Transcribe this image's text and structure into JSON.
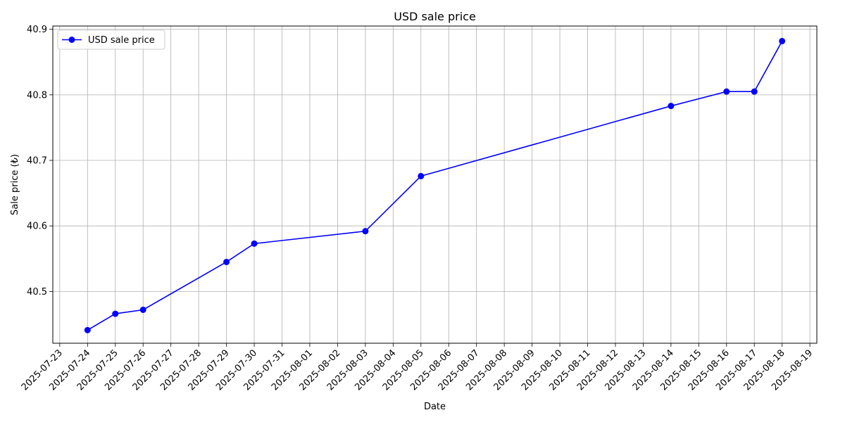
{
  "chart_data": {
    "type": "line",
    "title": "USD sale price",
    "xlabel": "Date",
    "ylabel": "Sale price (₺)",
    "x_ticks": [
      "2025-07-23",
      "2025-07-24",
      "2025-07-25",
      "2025-07-26",
      "2025-07-27",
      "2025-07-28",
      "2025-07-29",
      "2025-07-30",
      "2025-07-31",
      "2025-08-01",
      "2025-08-02",
      "2025-08-03",
      "2025-08-04",
      "2025-08-05",
      "2025-08-06",
      "2025-08-07",
      "2025-08-08",
      "2025-08-09",
      "2025-08-10",
      "2025-08-11",
      "2025-08-12",
      "2025-08-13",
      "2025-08-14",
      "2025-08-15",
      "2025-08-16",
      "2025-08-17",
      "2025-08-18",
      "2025-08-19"
    ],
    "y_ticks": [
      "40.5",
      "40.6",
      "40.7",
      "40.8",
      "40.9"
    ],
    "xlim": [
      "2025-07-22T18:00",
      "2025-08-19T06:00"
    ],
    "ylim": [
      40.421,
      40.905
    ],
    "grid": true,
    "legend_position": "top-left",
    "colors": {
      "series": "#0000ff"
    },
    "series": [
      {
        "name": "USD sale price",
        "x": [
          "2025-07-24",
          "2025-07-25",
          "2025-07-26",
          "2025-07-29",
          "2025-07-30",
          "2025-08-03",
          "2025-08-05",
          "2025-08-14",
          "2025-08-16",
          "2025-08-17",
          "2025-08-18"
        ],
        "y": [
          40.441,
          40.466,
          40.472,
          40.545,
          40.573,
          40.592,
          40.676,
          40.783,
          40.805,
          40.805,
          40.882
        ]
      }
    ]
  }
}
